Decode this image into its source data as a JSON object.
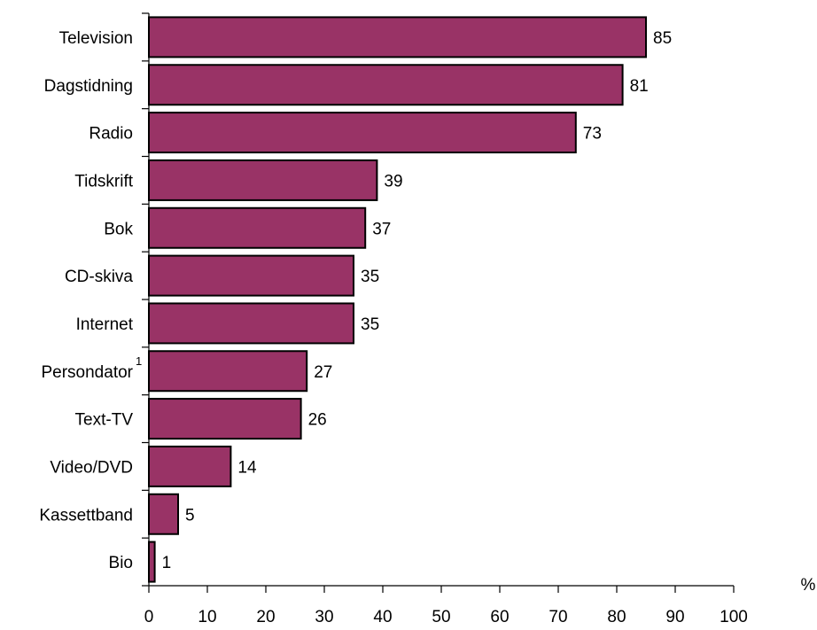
{
  "chart_data": {
    "type": "bar",
    "orientation": "horizontal",
    "categories": [
      "Television",
      "Dagstidning",
      "Radio",
      "Tidskrift",
      "Bok",
      "CD-skiva",
      "Internet",
      "Persondator",
      "Text-TV",
      "Video/DVD",
      "Kassettband",
      "Bio"
    ],
    "category_footnotes": {
      "Persondator": "1"
    },
    "values": [
      85,
      81,
      73,
      39,
      37,
      35,
      35,
      27,
      26,
      14,
      5,
      1
    ],
    "xlabel": "%",
    "ylabel": "",
    "xlim": [
      0,
      100
    ],
    "xticks": [
      0,
      10,
      20,
      30,
      40,
      50,
      60,
      70,
      80,
      90,
      100
    ],
    "data_labels": true,
    "grid": false,
    "legend": "none",
    "colors": {
      "bar_fill": "#993366",
      "bar_stroke": "#000000"
    }
  }
}
